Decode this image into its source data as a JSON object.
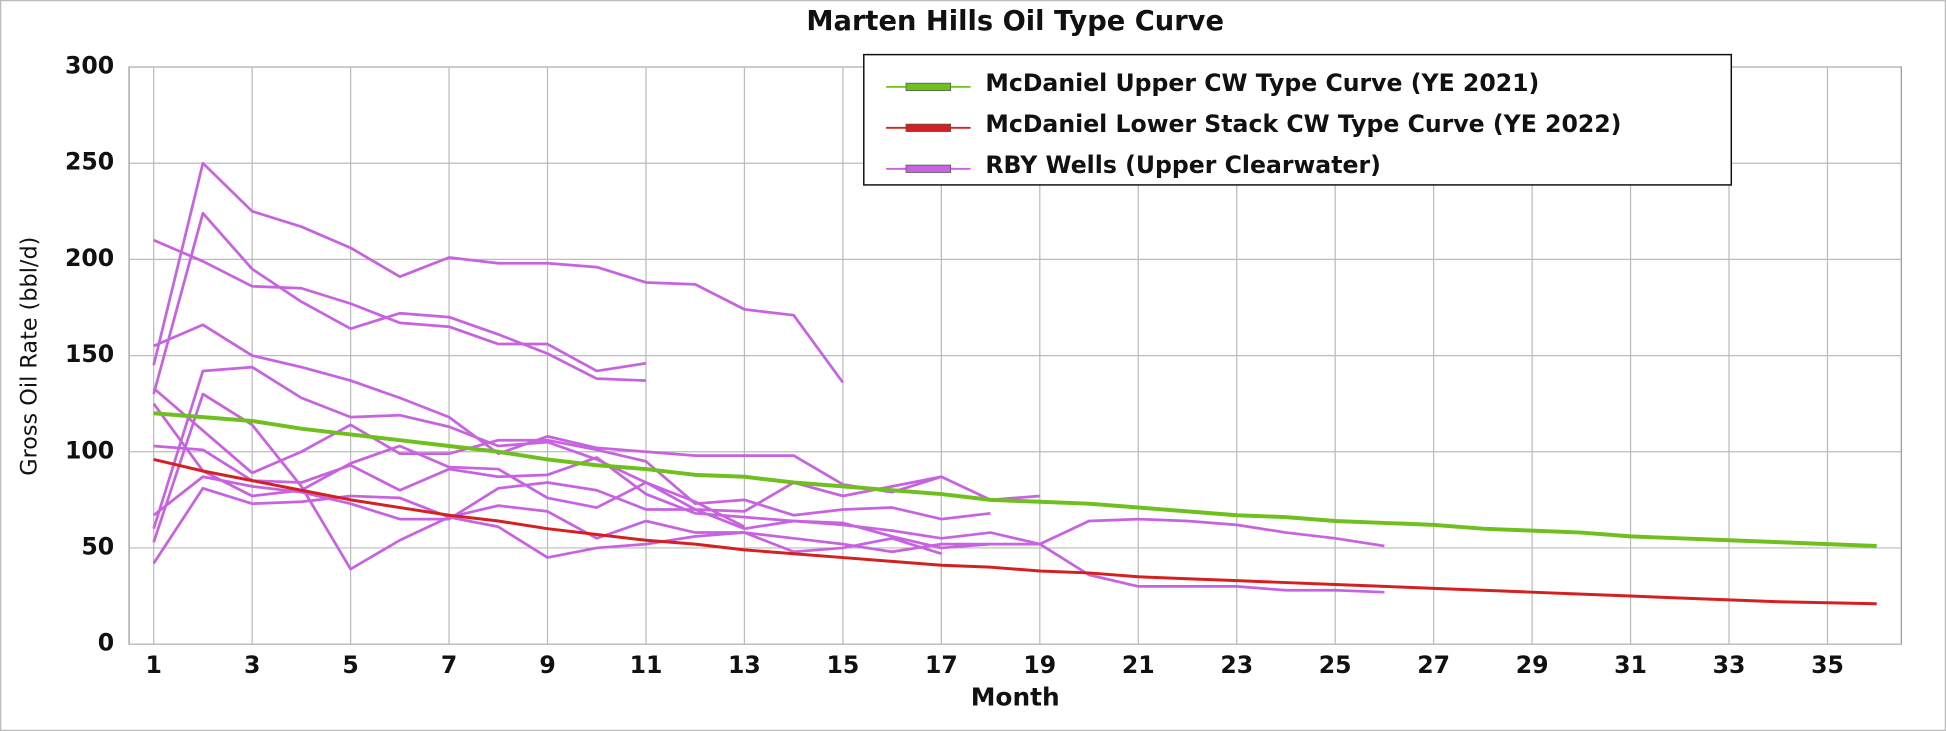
{
  "chart_data": {
    "type": "line",
    "title": "Marten Hills Oil Type Curve",
    "x_label": "Month",
    "y_label": "Gross Oil Rate (bbl/d)",
    "xlim": [
      0.5,
      36.5
    ],
    "xticks": [
      1,
      3,
      5,
      7,
      9,
      11,
      13,
      15,
      17,
      19,
      21,
      23,
      25,
      27,
      29,
      31,
      33,
      35
    ],
    "ylim": [
      0,
      300
    ],
    "yticks": [
      0,
      50,
      100,
      150,
      200,
      250,
      300
    ],
    "grid": true,
    "legend": "top-right",
    "series": [
      {
        "name": "McDaniel Upper CW Type Curve (YE 2021)",
        "color": "#6fbf1f",
        "values": [
          120,
          118,
          116,
          112,
          109,
          106,
          103,
          100,
          96,
          93,
          91,
          88,
          87,
          84,
          82,
          80,
          78,
          75,
          74,
          73,
          71,
          69,
          67,
          66,
          64,
          63,
          62,
          60,
          59,
          58,
          56,
          55,
          54,
          53,
          52,
          51
        ]
      },
      {
        "name": "McDaniel Lower Stack CW Type Curve (YE 2022)",
        "color": "#d42020",
        "values": [
          96,
          90,
          85,
          80,
          75,
          71,
          67,
          64,
          60,
          57,
          54,
          52,
          49,
          47,
          45,
          43,
          41,
          40,
          38,
          37,
          35,
          34,
          33,
          32,
          31,
          30,
          29,
          28,
          27,
          26,
          25,
          24,
          23,
          22,
          21.5,
          21
        ]
      },
      {
        "name": "RBY Wells (Upper Clearwater)",
        "color": "#c763e0",
        "values": [
          [
            145,
            250,
            225,
            217,
            206,
            191,
            201,
            198,
            198,
            196,
            188,
            187,
            174,
            171,
            136
          ],
          [
            130,
            224,
            195,
            178,
            164,
            172,
            170,
            161,
            151,
            138,
            137
          ],
          [
            210,
            199,
            186,
            185,
            177,
            167,
            165,
            156,
            156,
            142,
            146
          ],
          [
            155,
            166,
            150,
            144,
            137,
            128,
            118,
            99,
            108,
            102,
            100,
            98,
            98,
            98,
            83,
            79,
            87,
            75,
            77
          ],
          [
            60,
            142,
            144,
            128,
            118,
            119,
            113,
            103,
            105,
            96,
            84,
            70,
            69,
            84,
            77,
            82,
            87
          ],
          [
            133,
            111,
            89,
            100,
            114,
            99,
            99,
            106,
            106,
            101,
            95,
            73,
            75,
            67,
            70,
            71,
            65,
            68
          ],
          [
            103,
            101,
            85,
            84,
            93,
            80,
            91,
            87,
            88,
            97,
            78,
            68,
            66,
            64,
            63,
            56,
            50,
            52
          ],
          [
            53,
            130,
            114,
            82,
            39,
            54,
            66,
            72,
            69,
            55,
            64,
            58,
            58,
            48,
            50,
            55,
            47
          ],
          [
            42,
            81,
            73,
            74,
            77,
            76,
            66,
            61,
            45,
            50,
            52,
            56,
            58,
            55,
            52,
            48,
            52,
            52,
            52,
            36,
            30,
            30,
            30,
            28,
            28,
            27
          ],
          [
            67,
            87,
            82,
            79,
            73,
            65,
            65,
            81,
            84,
            80,
            70,
            70,
            60,
            64,
            62,
            59,
            55,
            58,
            52,
            64,
            65,
            64,
            62,
            58,
            55,
            51
          ],
          [
            125,
            90,
            77,
            80,
            94,
            103,
            92,
            91,
            76,
            71,
            84,
            74,
            61
          ]
        ]
      }
    ]
  }
}
